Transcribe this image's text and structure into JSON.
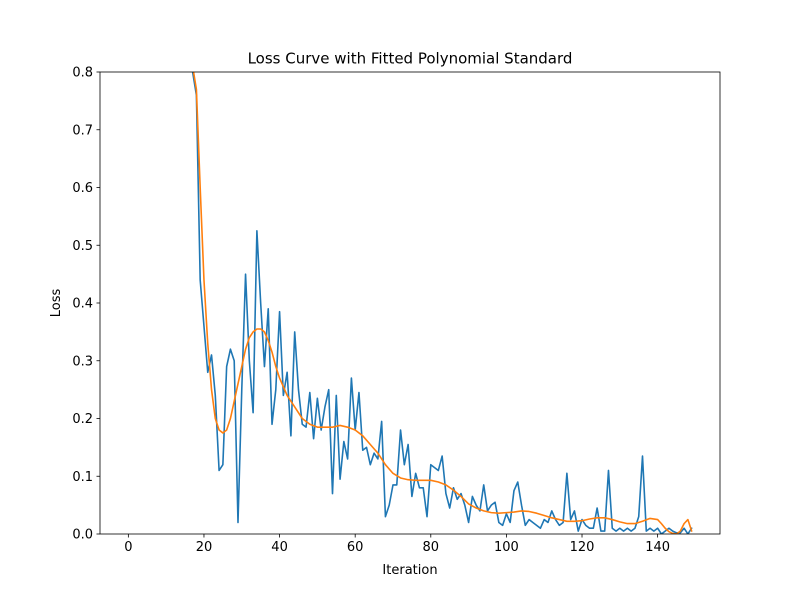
{
  "chart_data": {
    "type": "line",
    "title": "Loss Curve with Fitted Polynomial Standard",
    "xlabel": "Iteration",
    "ylabel": "Loss",
    "xlim": [
      -7.5,
      156.5
    ],
    "ylim": [
      0,
      0.8
    ],
    "xticks": [
      0,
      20,
      40,
      60,
      80,
      100,
      120,
      140
    ],
    "yticks": [
      0.0,
      0.1,
      0.2,
      0.3,
      0.4,
      0.5,
      0.6,
      0.7,
      0.8
    ],
    "ytick_labels": [
      "0.0",
      "0.1",
      "0.2",
      "0.3",
      "0.4",
      "0.5",
      "0.6",
      "0.7",
      "0.8"
    ],
    "grid": false,
    "legend": "none",
    "series": [
      {
        "color": "#1f77b4",
        "x": [
          17,
          18,
          19,
          20,
          21,
          22,
          23,
          24,
          25,
          26,
          27,
          28,
          29,
          30,
          31,
          32,
          33,
          34,
          35,
          36,
          37,
          38,
          39,
          40,
          41,
          42,
          43,
          44,
          45,
          46,
          47,
          48,
          49,
          50,
          51,
          52,
          53,
          54,
          55,
          56,
          57,
          58,
          59,
          60,
          61,
          62,
          63,
          64,
          65,
          66,
          67,
          68,
          69,
          70,
          71,
          72,
          73,
          74,
          75,
          76,
          77,
          78,
          79,
          80,
          81,
          82,
          83,
          84,
          85,
          86,
          87,
          88,
          89,
          90,
          91,
          92,
          93,
          94,
          95,
          96,
          97,
          98,
          99,
          100,
          101,
          102,
          103,
          104,
          105,
          106,
          107,
          108,
          109,
          110,
          111,
          112,
          113,
          114,
          115,
          116,
          117,
          118,
          119,
          120,
          121,
          122,
          123,
          124,
          125,
          126,
          127,
          128,
          129,
          130,
          131,
          132,
          133,
          134,
          135,
          136,
          137,
          138,
          139,
          140,
          141,
          142,
          143,
          144,
          145,
          146,
          147,
          148,
          149
        ],
        "values": [
          0.8,
          0.76,
          0.44,
          0.36,
          0.28,
          0.31,
          0.24,
          0.11,
          0.12,
          0.29,
          0.32,
          0.3,
          0.02,
          0.25,
          0.45,
          0.3,
          0.21,
          0.525,
          0.4,
          0.29,
          0.39,
          0.19,
          0.25,
          0.385,
          0.24,
          0.28,
          0.17,
          0.35,
          0.25,
          0.19,
          0.185,
          0.245,
          0.165,
          0.235,
          0.18,
          0.22,
          0.25,
          0.07,
          0.24,
          0.095,
          0.16,
          0.13,
          0.27,
          0.18,
          0.245,
          0.145,
          0.15,
          0.12,
          0.14,
          0.13,
          0.195,
          0.03,
          0.05,
          0.085,
          0.085,
          0.18,
          0.12,
          0.155,
          0.065,
          0.105,
          0.08,
          0.08,
          0.03,
          0.12,
          0.115,
          0.11,
          0.135,
          0.07,
          0.045,
          0.08,
          0.06,
          0.07,
          0.05,
          0.02,
          0.065,
          0.05,
          0.04,
          0.085,
          0.04,
          0.05,
          0.055,
          0.02,
          0.015,
          0.035,
          0.02,
          0.075,
          0.09,
          0.05,
          0.015,
          0.025,
          0.02,
          0.015,
          0.01,
          0.025,
          0.02,
          0.04,
          0.025,
          0.015,
          0.02,
          0.105,
          0.025,
          0.04,
          0.005,
          0.025,
          0.015,
          0.01,
          0.01,
          0.045,
          0.005,
          0.005,
          0.11,
          0.01,
          0.005,
          0.01,
          0.005,
          0.01,
          0.005,
          0.01,
          0.03,
          0.135,
          0.005,
          0.01,
          0.005,
          0.01,
          0.0,
          0.005,
          0.01,
          0.005,
          0.002,
          0.002,
          0.01,
          0.0,
          0.01
        ]
      },
      {
        "color": "#ff7f0e",
        "x": [
          17,
          18,
          19,
          20,
          21,
          22,
          23,
          24,
          25,
          26,
          27,
          28,
          29,
          30,
          31,
          32,
          33,
          34,
          35,
          36,
          37,
          38,
          39,
          40,
          42,
          44,
          46,
          48,
          50,
          52,
          54,
          56,
          58,
          60,
          62,
          64,
          66,
          68,
          70,
          72,
          74,
          76,
          78,
          80,
          82,
          84,
          86,
          88,
          90,
          92,
          94,
          96,
          98,
          100,
          102,
          104,
          106,
          108,
          110,
          112,
          114,
          116,
          118,
          120,
          122,
          124,
          126,
          128,
          130,
          132,
          134,
          136,
          138,
          140,
          141,
          142,
          143,
          144,
          145,
          146,
          147,
          148,
          149
        ],
        "values": [
          0.81,
          0.77,
          0.6,
          0.44,
          0.33,
          0.25,
          0.2,
          0.18,
          0.175,
          0.18,
          0.2,
          0.23,
          0.26,
          0.29,
          0.32,
          0.34,
          0.35,
          0.355,
          0.355,
          0.35,
          0.335,
          0.315,
          0.29,
          0.27,
          0.24,
          0.22,
          0.2,
          0.19,
          0.185,
          0.185,
          0.185,
          0.188,
          0.185,
          0.18,
          0.17,
          0.155,
          0.14,
          0.12,
          0.105,
          0.097,
          0.094,
          0.093,
          0.093,
          0.093,
          0.09,
          0.085,
          0.076,
          0.065,
          0.052,
          0.045,
          0.04,
          0.037,
          0.036,
          0.037,
          0.038,
          0.04,
          0.039,
          0.036,
          0.032,
          0.028,
          0.025,
          0.022,
          0.022,
          0.023,
          0.026,
          0.028,
          0.028,
          0.025,
          0.021,
          0.018,
          0.018,
          0.022,
          0.027,
          0.025,
          0.018,
          0.01,
          0.004,
          0.001,
          0.0,
          0.005,
          0.018,
          0.025,
          0.005
        ]
      }
    ]
  }
}
